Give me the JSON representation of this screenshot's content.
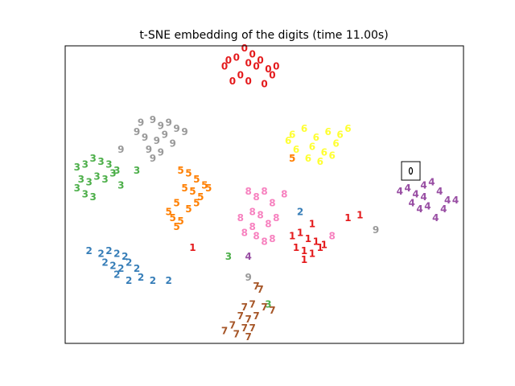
{
  "chart_data": {
    "type": "scatter",
    "title": "t-SNE embedding of the digits (time 11.00s)",
    "xlim": [
      0,
      1
    ],
    "ylim": [
      0,
      1
    ],
    "series": [
      {
        "name": "0",
        "color": "#e41a1c",
        "x": [
          0.4,
          0.43,
          0.45,
          0.47,
          0.49,
          0.51,
          0.52,
          0.44,
          0.46,
          0.5,
          0.42,
          0.48,
          0.41,
          0.53,
          0.46
        ],
        "values": [
          0.93,
          0.96,
          0.99,
          0.97,
          0.95,
          0.92,
          0.9,
          0.9,
          0.88,
          0.87,
          0.88,
          0.93,
          0.95,
          0.93,
          0.94
        ]
      },
      {
        "name": "1",
        "color": "#e41a1c",
        "x": [
          0.57,
          0.59,
          0.61,
          0.63,
          0.65,
          0.58,
          0.6,
          0.62,
          0.64,
          0.6,
          0.71,
          0.74,
          0.62,
          0.32
        ],
        "values": [
          0.36,
          0.37,
          0.35,
          0.34,
          0.33,
          0.32,
          0.31,
          0.3,
          0.32,
          0.28,
          0.42,
          0.43,
          0.4,
          0.32
        ]
      },
      {
        "name": "2",
        "color": "#377eb8",
        "x": [
          0.06,
          0.09,
          0.11,
          0.13,
          0.15,
          0.1,
          0.12,
          0.14,
          0.16,
          0.18,
          0.13,
          0.16,
          0.19,
          0.22,
          0.26,
          0.59
        ],
        "values": [
          0.31,
          0.3,
          0.31,
          0.3,
          0.29,
          0.27,
          0.26,
          0.25,
          0.27,
          0.25,
          0.23,
          0.21,
          0.22,
          0.21,
          0.21,
          0.44
        ]
      },
      {
        "name": "3",
        "color": "#4daf4a",
        "x": [
          0.03,
          0.05,
          0.07,
          0.09,
          0.11,
          0.13,
          0.04,
          0.06,
          0.08,
          0.1,
          0.12,
          0.05,
          0.07,
          0.03,
          0.14,
          0.18,
          0.41,
          0.51
        ],
        "values": [
          0.59,
          0.6,
          0.62,
          0.61,
          0.6,
          0.58,
          0.55,
          0.54,
          0.56,
          0.55,
          0.57,
          0.5,
          0.49,
          0.52,
          0.53,
          0.58,
          0.29,
          0.13
        ]
      },
      {
        "name": "4",
        "color": "#984ea3",
        "x": [
          0.84,
          0.86,
          0.88,
          0.9,
          0.92,
          0.94,
          0.96,
          0.98,
          0.87,
          0.89,
          0.91,
          0.93,
          0.95,
          0.9,
          0.46
        ],
        "values": [
          0.51,
          0.52,
          0.5,
          0.53,
          0.54,
          0.51,
          0.48,
          0.48,
          0.47,
          0.45,
          0.46,
          0.42,
          0.45,
          0.49,
          0.29
        ]
      },
      {
        "name": "5",
        "color": "#ff7f00",
        "x": [
          0.29,
          0.31,
          0.33,
          0.35,
          0.3,
          0.32,
          0.34,
          0.36,
          0.28,
          0.31,
          0.33,
          0.27,
          0.29,
          0.26,
          0.28,
          0.57
        ],
        "values": [
          0.58,
          0.57,
          0.55,
          0.53,
          0.52,
          0.51,
          0.49,
          0.52,
          0.47,
          0.45,
          0.47,
          0.42,
          0.41,
          0.44,
          0.39,
          0.62
        ]
      },
      {
        "name": "6",
        "color": "#ffff33",
        "x": [
          0.57,
          0.6,
          0.63,
          0.66,
          0.69,
          0.71,
          0.58,
          0.62,
          0.65,
          0.68,
          0.61,
          0.64,
          0.67,
          0.56
        ],
        "values": [
          0.7,
          0.72,
          0.69,
          0.71,
          0.7,
          0.72,
          0.65,
          0.66,
          0.64,
          0.67,
          0.62,
          0.61,
          0.63,
          0.68
        ]
      },
      {
        "name": "7",
        "color": "#a65628",
        "x": [
          0.48,
          0.49,
          0.45,
          0.47,
          0.5,
          0.52,
          0.44,
          0.46,
          0.48,
          0.42,
          0.45,
          0.47,
          0.4,
          0.43,
          0.46
        ],
        "values": [
          0.19,
          0.18,
          0.12,
          0.13,
          0.12,
          0.11,
          0.09,
          0.08,
          0.09,
          0.06,
          0.05,
          0.05,
          0.04,
          0.03,
          0.02
        ]
      },
      {
        "name": "8",
        "color": "#f781bf",
        "x": [
          0.46,
          0.48,
          0.5,
          0.52,
          0.55,
          0.44,
          0.47,
          0.49,
          0.51,
          0.53,
          0.45,
          0.48,
          0.5,
          0.52,
          0.47,
          0.67
        ],
        "values": [
          0.51,
          0.49,
          0.51,
          0.47,
          0.5,
          0.42,
          0.44,
          0.43,
          0.4,
          0.42,
          0.37,
          0.36,
          0.34,
          0.35,
          0.39,
          0.36
        ]
      },
      {
        "name": "9",
        "color": "#999999",
        "x": [
          0.19,
          0.22,
          0.24,
          0.26,
          0.28,
          0.3,
          0.2,
          0.23,
          0.25,
          0.27,
          0.21,
          0.24,
          0.18,
          0.22,
          0.14,
          0.78,
          0.46
        ],
        "values": [
          0.74,
          0.75,
          0.73,
          0.74,
          0.72,
          0.71,
          0.69,
          0.68,
          0.7,
          0.67,
          0.65,
          0.64,
          0.71,
          0.62,
          0.65,
          0.38,
          0.22
        ]
      }
    ]
  }
}
